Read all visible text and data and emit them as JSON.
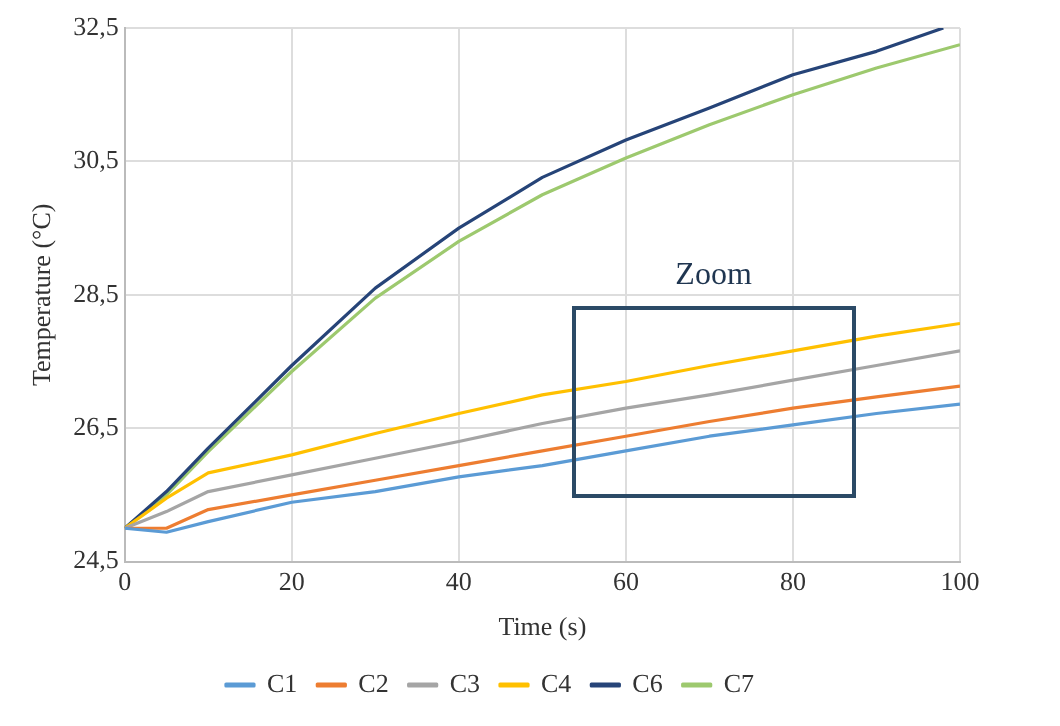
{
  "chart_data": {
    "type": "line",
    "xlabel": "Time (s)",
    "ylabel": "Temperature (°C)",
    "x": [
      0,
      5,
      10,
      20,
      30,
      40,
      50,
      60,
      70,
      80,
      90,
      100
    ],
    "series": [
      {
        "name": "C1",
        "color": "#5b9bd5",
        "values": [
          25,
          24.94,
          25.1,
          25.39,
          25.55,
          25.77,
          25.94,
          26.16,
          26.38,
          26.55,
          26.72,
          26.86
        ]
      },
      {
        "name": "C2",
        "color": "#ed7d31",
        "values": [
          25,
          25.0,
          25.28,
          25.5,
          25.72,
          25.94,
          26.16,
          26.38,
          26.6,
          26.8,
          26.97,
          27.13
        ]
      },
      {
        "name": "C3",
        "color": "#a5a5a5",
        "values": [
          25,
          25.25,
          25.55,
          25.8,
          26.05,
          26.3,
          26.57,
          26.8,
          27.0,
          27.22,
          27.44,
          27.66
        ]
      },
      {
        "name": "C4",
        "color": "#ffc000",
        "values": [
          25,
          25.45,
          25.83,
          26.1,
          26.42,
          26.72,
          27.0,
          27.2,
          27.44,
          27.66,
          27.88,
          28.07
        ]
      },
      {
        "name": "C6",
        "color": "#264478",
        "x": [
          0,
          5,
          10,
          20,
          30,
          40,
          50,
          60,
          70,
          80,
          90,
          98
        ],
        "values": [
          25,
          25.55,
          26.2,
          27.44,
          28.6,
          29.5,
          30.26,
          30.82,
          31.3,
          31.8,
          32.15,
          32.5
        ]
      },
      {
        "name": "C7",
        "color": "#9dc96e",
        "values": [
          25,
          25.5,
          26.15,
          27.35,
          28.45,
          29.3,
          30.0,
          30.55,
          31.05,
          31.5,
          31.9,
          32.25
        ]
      }
    ],
    "xlim": [
      0,
      100
    ],
    "xticks": [
      0,
      20,
      40,
      60,
      80,
      100
    ],
    "ylim": [
      24.5,
      32.5
    ],
    "yticks": [
      {
        "value": 24.5,
        "label": "24,5"
      },
      {
        "value": 26.5,
        "label": "26,5"
      },
      {
        "value": 28.5,
        "label": "28,5"
      },
      {
        "value": 30.5,
        "label": "30,5"
      },
      {
        "value": 32.5,
        "label": "32,5"
      }
    ],
    "grid": true,
    "legend": "bottom",
    "marker": "none",
    "line_style": "solid",
    "annotations": [
      "Zoom"
    ]
  }
}
